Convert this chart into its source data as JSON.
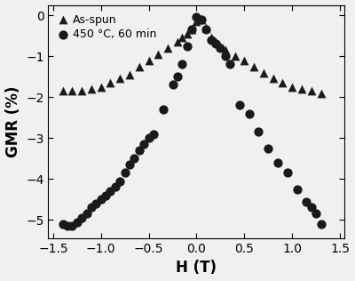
{
  "triangles_H": [
    -1.4,
    -1.3,
    -1.2,
    -1.1,
    -1.0,
    -0.9,
    -0.8,
    -0.7,
    -0.6,
    -0.5,
    -0.4,
    -0.3,
    -0.2,
    -0.15,
    -0.1,
    -0.05,
    0.0,
    0.05,
    0.1,
    0.15,
    0.2,
    0.25,
    0.3,
    0.4,
    0.5,
    0.6,
    0.7,
    0.8,
    0.9,
    1.0,
    1.1,
    1.2,
    1.3
  ],
  "triangles_GMR": [
    -1.85,
    -1.85,
    -1.85,
    -1.8,
    -1.75,
    -1.65,
    -1.55,
    -1.45,
    -1.25,
    -1.1,
    -0.95,
    -0.8,
    -0.65,
    -0.55,
    -0.45,
    -0.35,
    -0.15,
    -0.1,
    -0.3,
    -0.55,
    -0.65,
    -0.75,
    -0.85,
    -1.0,
    -1.1,
    -1.25,
    -1.4,
    -1.55,
    -1.65,
    -1.75,
    -1.8,
    -1.85,
    -1.9
  ],
  "circles_H": [
    -1.4,
    -1.35,
    -1.3,
    -1.25,
    -1.2,
    -1.15,
    -1.1,
    -1.05,
    -1.0,
    -0.95,
    -0.9,
    -0.85,
    -0.8,
    -0.75,
    -0.7,
    -0.65,
    -0.6,
    -0.55,
    -0.5,
    -0.45,
    -0.35,
    -0.25,
    -0.2,
    -0.15,
    -0.1,
    -0.05,
    0.0,
    0.05,
    0.1,
    0.15,
    0.2,
    0.25,
    0.3,
    0.35,
    0.45,
    0.55,
    0.65,
    0.75,
    0.85,
    0.95,
    1.05,
    1.15,
    1.2,
    1.25,
    1.3
  ],
  "circles_GMR": [
    -5.1,
    -5.15,
    -5.15,
    -5.05,
    -4.95,
    -4.85,
    -4.7,
    -4.6,
    -4.5,
    -4.4,
    -4.3,
    -4.2,
    -4.05,
    -3.85,
    -3.65,
    -3.5,
    -3.3,
    -3.15,
    -3.0,
    -2.9,
    -2.3,
    -1.7,
    -1.5,
    -1.2,
    -0.75,
    -0.35,
    -0.05,
    -0.1,
    -0.35,
    -0.6,
    -0.7,
    -0.8,
    -1.0,
    -1.2,
    -2.2,
    -2.4,
    -2.85,
    -3.25,
    -3.6,
    -3.85,
    -4.25,
    -4.55,
    -4.7,
    -4.85,
    -5.1
  ],
  "xlabel": "H (T)",
  "ylabel": "GMR (%)",
  "legend_triangle": "As-spun",
  "legend_circle": "450 °C, 60 min",
  "xlim": [
    -1.55,
    1.55
  ],
  "ylim": [
    -5.45,
    0.25
  ],
  "xticks": [
    -1.5,
    -1.0,
    -0.5,
    0.0,
    0.5,
    1.0,
    1.5
  ],
  "yticks": [
    0,
    -1,
    -2,
    -3,
    -4,
    -5
  ],
  "background_color": "#f0f0f0",
  "marker_color": "#1a1a1a",
  "label_fontsize": 12,
  "tick_fontsize": 10,
  "legend_fontsize": 9
}
